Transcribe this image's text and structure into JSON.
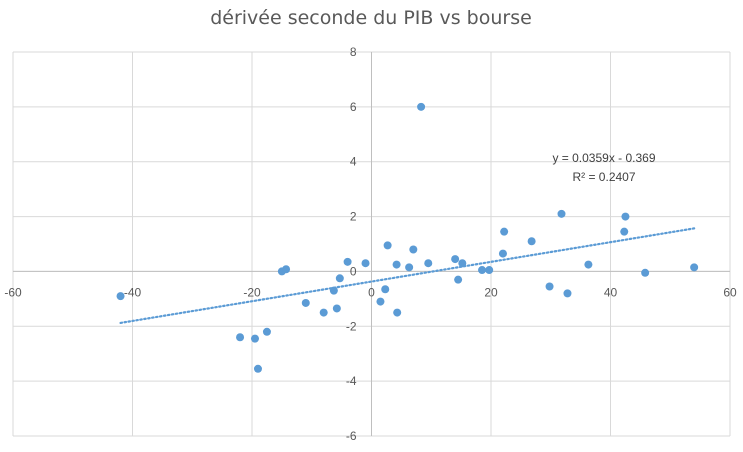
{
  "chart_data": {
    "type": "scatter",
    "title": "dérivée seconde du PIB vs bourse",
    "xlabel": "",
    "ylabel": "",
    "xlim": [
      -60,
      60
    ],
    "ylim": [
      -6,
      8
    ],
    "x_ticks": [
      -60,
      -40,
      -20,
      0,
      20,
      40,
      60
    ],
    "y_ticks": [
      -6,
      -4,
      -2,
      0,
      2,
      4,
      6,
      8
    ],
    "grid": true,
    "legend": "none",
    "colors": {
      "points": "#5b9bd5",
      "trendline": "#5b9bd5",
      "grid": "#d9d9d9",
      "axis": "#bfbfbf"
    },
    "series": [
      {
        "points": [
          {
            "x": -42,
            "y": -0.9
          },
          {
            "x": -22,
            "y": -2.4
          },
          {
            "x": -19.5,
            "y": -2.45
          },
          {
            "x": -19,
            "y": -3.55
          },
          {
            "x": -17.5,
            "y": -2.2
          },
          {
            "x": -15,
            "y": 0.0
          },
          {
            "x": -14.3,
            "y": 0.08
          },
          {
            "x": -11,
            "y": -1.15
          },
          {
            "x": -8,
            "y": -1.5
          },
          {
            "x": -6.3,
            "y": -0.7
          },
          {
            "x": -5.8,
            "y": -1.35
          },
          {
            "x": -5.3,
            "y": -0.25
          },
          {
            "x": -4,
            "y": 0.35
          },
          {
            "x": -1,
            "y": 0.3
          },
          {
            "x": 1.5,
            "y": -1.1
          },
          {
            "x": 2.3,
            "y": -0.65
          },
          {
            "x": 2.7,
            "y": 0.95
          },
          {
            "x": 4.2,
            "y": 0.25
          },
          {
            "x": 4.3,
            "y": -1.5
          },
          {
            "x": 6.3,
            "y": 0.15
          },
          {
            "x": 7.0,
            "y": 0.8
          },
          {
            "x": 8.3,
            "y": 6.0
          },
          {
            "x": 9.5,
            "y": 0.3
          },
          {
            "x": 14,
            "y": 0.45
          },
          {
            "x": 14.5,
            "y": -0.3
          },
          {
            "x": 15.2,
            "y": 0.3
          },
          {
            "x": 18.5,
            "y": 0.05
          },
          {
            "x": 19.7,
            "y": 0.05
          },
          {
            "x": 22,
            "y": 0.65
          },
          {
            "x": 22.2,
            "y": 1.45
          },
          {
            "x": 26.8,
            "y": 1.1
          },
          {
            "x": 29.8,
            "y": -0.55
          },
          {
            "x": 31.8,
            "y": 2.1
          },
          {
            "x": 32.8,
            "y": -0.8
          },
          {
            "x": 36.3,
            "y": 0.25
          },
          {
            "x": 42.3,
            "y": 1.45
          },
          {
            "x": 42.5,
            "y": 2.0
          },
          {
            "x": 45.8,
            "y": -0.05
          },
          {
            "x": 54,
            "y": 0.15
          }
        ]
      }
    ],
    "trendline": {
      "type": "linear",
      "slope": 0.0359,
      "intercept": -0.369,
      "x_range": [
        -42,
        54
      ],
      "equation": "y = 0.0359x - 0.369",
      "r_squared": "R² = 0.2407"
    }
  }
}
